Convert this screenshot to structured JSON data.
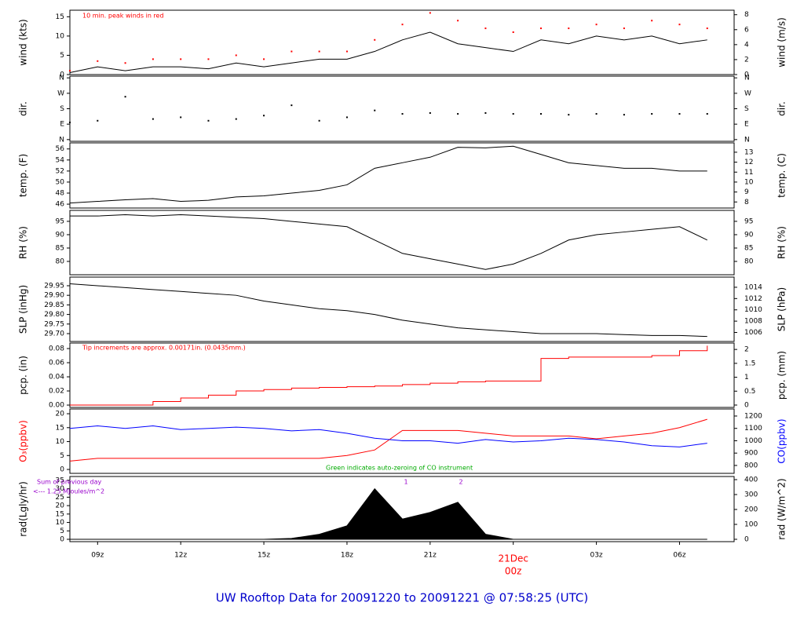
{
  "title": "UW Rooftop Data for 20091220  to  20091221 @ 07:58:25  (UTC)",
  "chart_data": [
    {
      "type": "line",
      "ylabel": "wind (kts)",
      "y2label": "wind (m/s)",
      "xlim": [
        8,
        31.97
      ],
      "ylim": [
        0,
        16.7
      ],
      "yticks": [
        0,
        5,
        10,
        15
      ],
      "y2lim": [
        0,
        8.6
      ],
      "y2ticks": [
        0,
        2,
        4,
        6,
        8
      ],
      "annotations": [
        {
          "text": "10 min. peak winds in red",
          "color": "#ff0000"
        }
      ],
      "x": [
        8,
        9,
        10,
        11,
        12,
        13,
        14,
        15,
        16,
        17,
        18,
        19,
        20,
        21,
        22,
        23,
        24,
        25,
        26,
        27,
        28,
        29,
        30,
        31
      ],
      "series": [
        {
          "color": "#000000",
          "values": [
            0.5,
            2,
            1,
            2,
            2,
            1.5,
            3,
            2,
            3,
            4,
            4,
            6,
            9,
            11,
            8,
            7,
            6,
            9,
            8,
            10,
            9,
            10,
            8,
            9
          ]
        },
        {
          "type": "scatter",
          "color": "#ff0000",
          "values": [
            1,
            3.5,
            3,
            4,
            4,
            4,
            5,
            4,
            6,
            6,
            6,
            9,
            13,
            16,
            14,
            12,
            11,
            12,
            12,
            13,
            12,
            14,
            13,
            12
          ]
        }
      ]
    },
    {
      "type": "scatter",
      "ylabel": "dir.",
      "y2label": "dir.",
      "xlim": [
        8,
        31.97
      ],
      "ylim": [
        -10,
        370
      ],
      "yticks": [
        {
          "value": 0,
          "label": "N"
        },
        {
          "value": 90,
          "label": "E"
        },
        {
          "value": 180,
          "label": "S"
        },
        {
          "value": 270,
          "label": "W"
        },
        {
          "value": 360,
          "label": "N"
        }
      ],
      "y2lim": [
        -10,
        370
      ],
      "y2ticks": [
        {
          "value": 0,
          "label": "N"
        },
        {
          "value": 90,
          "label": "E"
        },
        {
          "value": 180,
          "label": "S"
        },
        {
          "value": 270,
          "label": "W"
        },
        {
          "value": 360,
          "label": "N"
        }
      ],
      "x": [
        8,
        9,
        10,
        11,
        12,
        13,
        14,
        15,
        16,
        17,
        18,
        19,
        20,
        21,
        22,
        23,
        24,
        25,
        26,
        27,
        28,
        29,
        30,
        31
      ],
      "series": [
        {
          "color": "#000000",
          "values": [
            100,
            110,
            250,
            120,
            130,
            110,
            120,
            140,
            200,
            110,
            130,
            170,
            150,
            155,
            150,
            155,
            150,
            150,
            145,
            150,
            145,
            150,
            150,
            150
          ]
        }
      ]
    },
    {
      "type": "line",
      "ylabel": "temp. (F)",
      "y2label": "temp. (C)",
      "xlim": [
        8,
        31.97
      ],
      "ylim": [
        45.3,
        57.1
      ],
      "yticks": [
        46,
        48,
        50,
        52,
        54,
        56
      ],
      "y2lim": [
        7.39,
        13.94
      ],
      "y2ticks": [
        8,
        9,
        10,
        11,
        12,
        13
      ],
      "x": [
        8,
        9,
        10,
        11,
        12,
        13,
        14,
        15,
        16,
        17,
        18,
        19,
        20,
        21,
        22,
        23,
        24,
        25,
        26,
        27,
        28,
        29,
        30,
        31
      ],
      "series": [
        {
          "color": "#000000",
          "values": [
            46.2,
            46.5,
            46.8,
            47,
            46.5,
            46.7,
            47.3,
            47.5,
            48,
            48.5,
            49.5,
            52.5,
            53.5,
            54.5,
            56.3,
            56.2,
            56.5,
            55,
            53.5,
            53,
            52.5,
            52.5,
            52,
            52
          ]
        }
      ]
    },
    {
      "type": "line",
      "ylabel": "RH (%)",
      "y2label": "RH (%)",
      "xlim": [
        8,
        31.97
      ],
      "ylim": [
        75,
        99.1
      ],
      "yticks": [
        80,
        85,
        90,
        95
      ],
      "y2lim": [
        75,
        99.1
      ],
      "y2ticks": [
        80,
        85,
        90,
        95
      ],
      "x": [
        8,
        9,
        10,
        11,
        12,
        13,
        14,
        15,
        16,
        17,
        18,
        19,
        20,
        21,
        22,
        23,
        24,
        25,
        26,
        27,
        28,
        29,
        30,
        31
      ],
      "series": [
        {
          "color": "#000000",
          "values": [
            97,
            97,
            97.5,
            97,
            97.5,
            97,
            96.5,
            96,
            95,
            94,
            93,
            88,
            83,
            81,
            79,
            77,
            79,
            83,
            88,
            90,
            91,
            92,
            93,
            88
          ]
        }
      ]
    },
    {
      "type": "line",
      "ylabel": "SLP (inHg)",
      "y2label": "SLP (hPa)",
      "xlim": [
        8,
        31.97
      ],
      "ylim": [
        29.659,
        29.995
      ],
      "yticks": [
        {
          "value": 29.7,
          "label": "29.70"
        },
        29.75,
        {
          "value": 29.8,
          "label": "29.80"
        },
        29.85,
        {
          "value": 29.9,
          "label": "29.90"
        },
        29.95
      ],
      "y2lim": [
        1004.4,
        1015.8
      ],
      "y2ticks": [
        1006,
        1008,
        1010,
        1012,
        1014
      ],
      "x": [
        8,
        9,
        10,
        11,
        12,
        13,
        14,
        15,
        16,
        17,
        18,
        19,
        20,
        21,
        22,
        23,
        24,
        25,
        26,
        27,
        28,
        29,
        30,
        31
      ],
      "series": [
        {
          "color": "#000000",
          "values": [
            29.96,
            29.95,
            29.94,
            29.93,
            29.92,
            29.91,
            29.9,
            29.87,
            29.85,
            29.83,
            29.82,
            29.8,
            29.77,
            29.75,
            29.73,
            29.72,
            29.71,
            29.7,
            29.7,
            29.7,
            29.695,
            29.69,
            29.69,
            29.685
          ]
        }
      ]
    },
    {
      "type": "line",
      "step": true,
      "ylabel": "pcp. (in)",
      "y2label": "pcp. (mm)",
      "xlim": [
        8,
        31.97
      ],
      "ylim": [
        -0.0033,
        0.0878
      ],
      "yticks": [
        {
          "value": 0,
          "label": "0.00"
        },
        0.02,
        0.04,
        0.06,
        0.08
      ],
      "y2lim": [
        -0.085,
        2.23
      ],
      "y2ticks": [
        0,
        0.5,
        1,
        1.5,
        2
      ],
      "annotations": [
        {
          "text": "Tip increments are approx. 0.00171in. (0.0435mm.)",
          "color": "#ff0000"
        }
      ],
      "x": [
        8,
        9,
        10,
        11,
        12,
        13,
        14,
        15,
        16,
        17,
        18,
        19,
        20,
        21,
        22,
        23,
        24,
        25,
        26,
        27,
        28,
        29,
        30,
        31
      ],
      "series": [
        {
          "color": "#ff0000",
          "values": [
            0,
            0,
            0,
            0.005,
            0.01,
            0.014,
            0.02,
            0.022,
            0.024,
            0.025,
            0.026,
            0.027,
            0.029,
            0.031,
            0.033,
            0.034,
            0.034,
            0.066,
            0.068,
            0.068,
            0.068,
            0.07,
            0.077,
            0.084
          ]
        }
      ]
    },
    {
      "type": "line",
      "ylabel": "O₃(ppbv)",
      "ylabel_color": "#ff0000",
      "y2label": "CO(ppbv)",
      "y2label_color": "#0000ff",
      "xlim": [
        8,
        31.97
      ],
      "ylim": [
        -1.4,
        21.7
      ],
      "yticks": [
        0,
        5,
        10,
        15,
        20
      ],
      "y2lim": [
        736,
        1257
      ],
      "y2ticks": [
        800,
        900,
        1000,
        1100,
        1200
      ],
      "annotations": [
        {
          "text": "Green indicates auto-zeroing of CO instrument",
          "color": "#00aa00"
        }
      ],
      "x": [
        8,
        9,
        10,
        11,
        12,
        13,
        14,
        15,
        16,
        17,
        18,
        19,
        20,
        21,
        22,
        23,
        24,
        25,
        26,
        27,
        28,
        29,
        30,
        31
      ],
      "series": [
        {
          "color": "#ff0000",
          "values": [
            3,
            4,
            4,
            4,
            4,
            4,
            4,
            4,
            4,
            4,
            5,
            7,
            14,
            14,
            14,
            13,
            12,
            12,
            12,
            11,
            12,
            13,
            15,
            18
          ]
        },
        {
          "axis": "y2",
          "color": "#0000ff",
          "values": [
            1100,
            1120,
            1100,
            1120,
            1090,
            1100,
            1110,
            1100,
            1080,
            1090,
            1060,
            1020,
            1000,
            1000,
            980,
            1010,
            990,
            1000,
            1020,
            1010,
            990,
            960,
            950,
            980
          ]
        }
      ]
    },
    {
      "type": "area",
      "ylabel": "rad(Lgly/hr)",
      "y2label": "rad (W/m^2)",
      "xlim": [
        8,
        31.97
      ],
      "ylim": [
        -1.4,
        37.3
      ],
      "yticks": [
        0,
        5,
        10,
        15,
        20,
        25,
        30,
        35
      ],
      "y2lim": [
        -15.8,
        421
      ],
      "y2ticks": [
        0,
        100,
        200,
        300,
        400
      ],
      "annotations": [
        {
          "text": "Sum of previous day",
          "color": "#9900cc"
        },
        {
          "text": "<--- 1.25 MJoules/m^2",
          "color": "#9900cc"
        },
        {
          "text": "1",
          "color": "#9900cc"
        },
        {
          "text": "2",
          "color": "#9900cc"
        }
      ],
      "x": [
        8,
        9,
        10,
        11,
        12,
        13,
        14,
        15,
        16,
        17,
        18,
        19,
        20,
        21,
        22,
        23,
        24,
        25,
        26,
        27,
        28,
        29,
        30,
        31
      ],
      "series": [
        {
          "color": "#000000",
          "values": [
            0,
            0,
            0,
            0,
            0,
            0,
            0,
            0,
            0.5,
            3,
            8,
            30,
            12,
            16,
            22,
            3,
            0,
            0,
            0,
            0,
            0,
            0,
            0,
            0
          ]
        }
      ],
      "xticks": [
        {
          "value": 9,
          "label": "09z"
        },
        {
          "value": 12,
          "label": "12z"
        },
        {
          "value": 15,
          "label": "15z"
        },
        {
          "value": 18,
          "label": "18z"
        },
        {
          "value": 21,
          "label": "21z"
        },
        {
          "value": 24,
          "label": "00z"
        },
        {
          "value": 27,
          "label": "03z"
        },
        {
          "value": 30,
          "label": "06z"
        }
      ],
      "date_label": "21Dec",
      "date_color": "#ff0000"
    }
  ]
}
